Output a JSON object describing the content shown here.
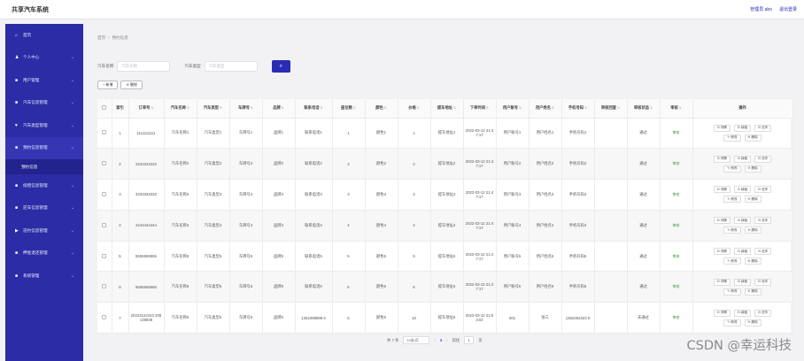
{
  "header": {
    "title": "共享汽车系统",
    "user_label": "管理员 abo",
    "logout_label": "退出登录"
  },
  "sidebar": {
    "items": [
      {
        "icon": "home-icon",
        "glyph": "⌂",
        "label": "首页",
        "expandable": false
      },
      {
        "icon": "user-icon",
        "glyph": "♟",
        "label": "个人中心",
        "expandable": true
      },
      {
        "icon": "users-icon",
        "glyph": "■",
        "label": "用户管理",
        "expandable": true
      },
      {
        "icon": "car-icon",
        "glyph": "■",
        "label": "汽车信息管理",
        "expandable": true
      },
      {
        "icon": "category-icon",
        "glyph": "♥",
        "label": "汽车类型管理",
        "expandable": true
      },
      {
        "icon": "order-icon",
        "glyph": "■",
        "label": "预约信息管理",
        "expandable": true,
        "active": true,
        "sub": "预约信息"
      },
      {
        "icon": "grid-icon",
        "glyph": "■",
        "label": "续租信息管理",
        "expandable": true
      },
      {
        "icon": "return-icon",
        "glyph": "■",
        "label": "还车信息管理",
        "expandable": true
      },
      {
        "icon": "flag-icon",
        "glyph": "▶",
        "label": "违约信息管理",
        "expandable": true
      },
      {
        "icon": "payment-icon",
        "glyph": "■",
        "label": "押金退还管理",
        "expandable": true
      },
      {
        "icon": "settings-icon",
        "glyph": "■",
        "label": "系统管理",
        "expandable": true
      }
    ]
  },
  "breadcrumb": {
    "home": "首页",
    "current": "预约信息"
  },
  "search": {
    "car_name_label": "汽车名称",
    "car_name_placeholder": "汽车名称",
    "car_type_label": "汽车类型",
    "car_type_placeholder": "汽车类型",
    "search_icon": "search-icon"
  },
  "actions": {
    "add": "+ 新增",
    "delete": "⊖ 删除"
  },
  "table": {
    "columns": [
      "",
      "索引",
      "订单号",
      "汽车名称",
      "汽车类型",
      "车牌号",
      "品牌",
      "联系电话",
      "座位数",
      "颜色",
      "价格",
      "提车地址",
      "下单时间",
      "用户账号",
      "用户姓名",
      "手机号码",
      "审核回复",
      "审核状态",
      "审核",
      "操作"
    ],
    "sortable": [
      false,
      false,
      true,
      true,
      true,
      true,
      true,
      true,
      true,
      true,
      true,
      true,
      true,
      true,
      true,
      true,
      true,
      true,
      true,
      false
    ],
    "rows": [
      [
        "1",
        "1111111111",
        "汽车名称1",
        "汽车类型1",
        "车牌号1",
        "品牌1",
        "联系电话1",
        "1",
        "颜色1",
        "1",
        "提车地址1",
        "2022-03-12 21:47:17",
        "用户账号1",
        "用户姓名1",
        "手机号码1",
        "",
        "通过",
        "审核"
      ],
      [
        "2",
        "2222222222",
        "汽车名称2",
        "汽车类型2",
        "车牌号2",
        "品牌2",
        "联系电话2",
        "2",
        "颜色2",
        "2",
        "提车地址2",
        "2022-03-12 21:47:17",
        "用户账号2",
        "用户姓名2",
        "手机号码2",
        "",
        "通过",
        "审核"
      ],
      [
        "3",
        "3333333333",
        "汽车名称3",
        "汽车类型3",
        "车牌号3",
        "品牌3",
        "联系电话3",
        "3",
        "颜色3",
        "3",
        "提车地址3",
        "2022-03-12 21:47:17",
        "用户账号3",
        "用户姓名3",
        "手机号码3",
        "",
        "通过",
        "审核"
      ],
      [
        "4",
        "4444444444",
        "汽车名称4",
        "汽车类型4",
        "车牌号4",
        "品牌4",
        "联系电话4",
        "4",
        "颜色4",
        "4",
        "提车地址4",
        "2022-03-12 21:47:17",
        "用户账号4",
        "用户姓名4",
        "手机号码4",
        "",
        "通过",
        "审核"
      ],
      [
        "5",
        "5555555555",
        "汽车名称5",
        "汽车类型5",
        "车牌号5",
        "品牌5",
        "联系电话5",
        "5",
        "颜色5",
        "5",
        "提车地址5",
        "2022-03-12 21:47:17",
        "用户账号5",
        "用户姓名5",
        "手机号码5",
        "",
        "通过",
        "审核"
      ],
      [
        "6",
        "6666666666",
        "汽车名称6",
        "汽车类型6",
        "车牌号6",
        "品牌6",
        "联系电话6",
        "6",
        "颜色6",
        "6",
        "提车地址6",
        "2022-03-12 21:47:17",
        "用户账号6",
        "用户姓名6",
        "手机号码6",
        "",
        "通过",
        "审核"
      ],
      [
        "7",
        "20223122153 208139838",
        "汽车名称6",
        "汽车类型6",
        "车牌号6",
        "品牌6",
        "1352388888 6",
        "6",
        "颜色6",
        "10",
        "提车地址6",
        "2022-03-12 21:53:02",
        "001",
        "张三",
        "1352352323 5",
        "",
        "未通过",
        "审核"
      ]
    ],
    "ops_line1": [
      "⊡ 详情",
      "⊡ 续租",
      "⊡ 还车"
    ],
    "ops_line2": [
      "✎ 修改",
      "⊖ 删除"
    ]
  },
  "pager": {
    "total": "共 7 条",
    "page_size": "10条/页",
    "prev": "‹",
    "page": "1",
    "next": "›",
    "goto_label": "前往",
    "goto_value": "1",
    "page_unit": "页"
  },
  "watermark": "CSDN @幸运科技",
  "colors": {
    "sidebar": "#2c2ca6",
    "accent": "#2b2bb4",
    "audit": "#3a9a3a"
  }
}
